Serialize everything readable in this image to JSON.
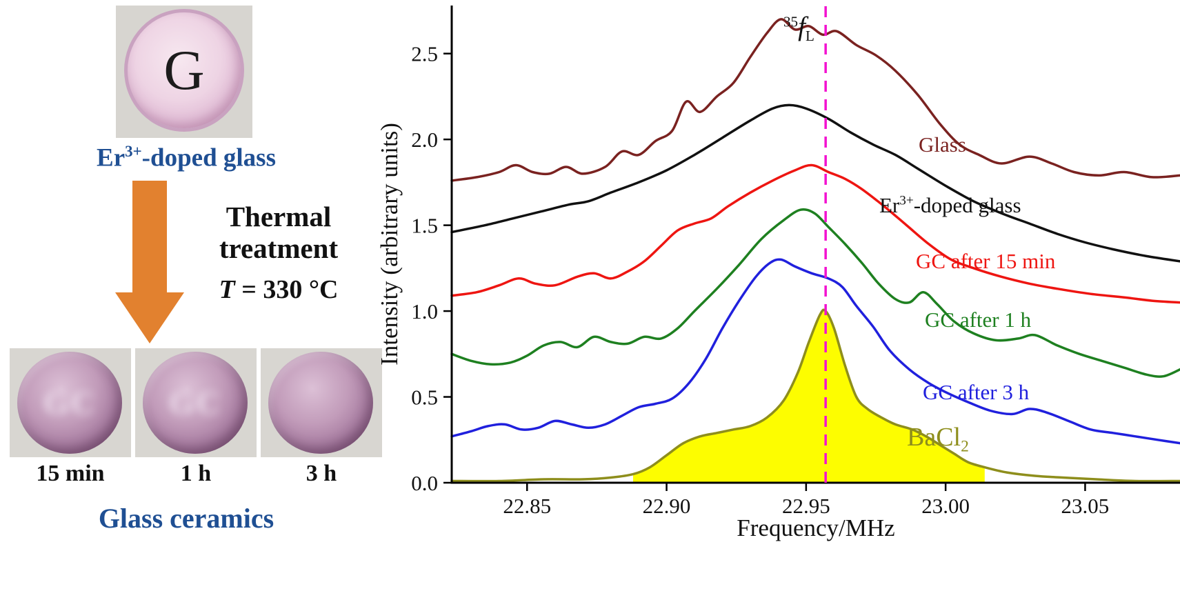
{
  "left_panel": {
    "glass_letter": "G",
    "glass_label": {
      "pre": "Er",
      "sup": "3+",
      "post": "-doped glass"
    },
    "thermal": {
      "line1": "Thermal",
      "line2": "treatment",
      "t_italic": "T",
      "t_rest": " = 330 °C"
    },
    "gc_overlay": "GC",
    "time_labels": [
      "15 min",
      "1 h",
      "3 h"
    ],
    "bottom_label": "Glass ceramics",
    "colors": {
      "label_blue": "#1f4f93",
      "arrow_orange": "#e2812f"
    }
  },
  "chart_data": {
    "type": "line",
    "xlabel": "Frequency/MHz",
    "ylabel": "Intensity (arbitrary units)",
    "xlim": [
      22.823,
      23.084
    ],
    "ylim": [
      0,
      2.78
    ],
    "x_ticks": [
      22.85,
      22.9,
      22.95,
      23.0,
      23.05
    ],
    "x_tick_labels": [
      "22.85",
      "22.90",
      "22.95",
      "23.00",
      "23.05"
    ],
    "y_ticks": [
      0.0,
      0.5,
      1.0,
      1.5,
      2.0,
      2.5
    ],
    "y_tick_labels": [
      "0.0",
      "0.5",
      "1.0",
      "1.5",
      "2.0",
      "2.5"
    ],
    "reference_line": {
      "x": 22.957,
      "color": "#f312d0",
      "style": "dashed",
      "label": {
        "sup": "35",
        "italic": "f",
        "sub": "L"
      }
    },
    "legend_labels": {
      "glass": "Glass",
      "er": {
        "pre": "Er",
        "sup": "3+",
        "post": "-doped glass"
      },
      "gc15": "GC after 15 min",
      "gc1h": "GC after 1 h",
      "gc3h": "GC after 3 h",
      "bacl2": {
        "pre": "BaCl",
        "sub": "2"
      }
    },
    "series": [
      {
        "name": "Glass",
        "color": "#7a2220",
        "points": [
          [
            22.823,
            1.76
          ],
          [
            22.832,
            1.78
          ],
          [
            22.84,
            1.81
          ],
          [
            22.846,
            1.85
          ],
          [
            22.852,
            1.81
          ],
          [
            22.858,
            1.8
          ],
          [
            22.864,
            1.84
          ],
          [
            22.87,
            1.8
          ],
          [
            22.878,
            1.84
          ],
          [
            22.884,
            1.93
          ],
          [
            22.89,
            1.91
          ],
          [
            22.896,
            1.99
          ],
          [
            22.902,
            2.05
          ],
          [
            22.907,
            2.22
          ],
          [
            22.912,
            2.16
          ],
          [
            22.918,
            2.25
          ],
          [
            22.924,
            2.33
          ],
          [
            22.93,
            2.48
          ],
          [
            22.936,
            2.62
          ],
          [
            22.941,
            2.7
          ],
          [
            22.946,
            2.64
          ],
          [
            22.951,
            2.66
          ],
          [
            22.956,
            2.61
          ],
          [
            22.961,
            2.63
          ],
          [
            22.968,
            2.55
          ],
          [
            22.975,
            2.49
          ],
          [
            22.982,
            2.4
          ],
          [
            22.99,
            2.26
          ],
          [
            22.998,
            2.09
          ],
          [
            23.005,
            1.97
          ],
          [
            23.012,
            1.91
          ],
          [
            23.02,
            1.86
          ],
          [
            23.03,
            1.9
          ],
          [
            23.038,
            1.86
          ],
          [
            23.046,
            1.81
          ],
          [
            23.055,
            1.79
          ],
          [
            23.064,
            1.81
          ],
          [
            23.074,
            1.78
          ],
          [
            23.084,
            1.79
          ]
        ]
      },
      {
        "name": "Er3+-doped glass",
        "color": "#111111",
        "points": [
          [
            22.823,
            1.46
          ],
          [
            22.835,
            1.5
          ],
          [
            22.845,
            1.54
          ],
          [
            22.855,
            1.58
          ],
          [
            22.865,
            1.62
          ],
          [
            22.872,
            1.64
          ],
          [
            22.88,
            1.69
          ],
          [
            22.89,
            1.75
          ],
          [
            22.9,
            1.82
          ],
          [
            22.91,
            1.91
          ],
          [
            22.92,
            2.01
          ],
          [
            22.93,
            2.11
          ],
          [
            22.938,
            2.18
          ],
          [
            22.944,
            2.2
          ],
          [
            22.95,
            2.18
          ],
          [
            22.958,
            2.12
          ],
          [
            22.966,
            2.04
          ],
          [
            22.974,
            1.97
          ],
          [
            22.982,
            1.91
          ],
          [
            22.99,
            1.83
          ],
          [
            23.0,
            1.73
          ],
          [
            23.01,
            1.64
          ],
          [
            23.02,
            1.57
          ],
          [
            23.03,
            1.51
          ],
          [
            23.04,
            1.45
          ],
          [
            23.05,
            1.4
          ],
          [
            23.06,
            1.36
          ],
          [
            23.072,
            1.32
          ],
          [
            23.084,
            1.29
          ]
        ]
      },
      {
        "name": "GC after 15 min",
        "color": "#ee1511",
        "points": [
          [
            22.823,
            1.09
          ],
          [
            22.832,
            1.11
          ],
          [
            22.84,
            1.15
          ],
          [
            22.847,
            1.19
          ],
          [
            22.853,
            1.16
          ],
          [
            22.86,
            1.15
          ],
          [
            22.868,
            1.2
          ],
          [
            22.874,
            1.22
          ],
          [
            22.88,
            1.19
          ],
          [
            22.886,
            1.23
          ],
          [
            22.892,
            1.29
          ],
          [
            22.898,
            1.38
          ],
          [
            22.904,
            1.47
          ],
          [
            22.91,
            1.51
          ],
          [
            22.916,
            1.54
          ],
          [
            22.922,
            1.61
          ],
          [
            22.93,
            1.69
          ],
          [
            22.938,
            1.76
          ],
          [
            22.946,
            1.82
          ],
          [
            22.952,
            1.85
          ],
          [
            22.958,
            1.81
          ],
          [
            22.964,
            1.77
          ],
          [
            22.97,
            1.71
          ],
          [
            22.978,
            1.61
          ],
          [
            22.986,
            1.5
          ],
          [
            22.994,
            1.39
          ],
          [
            23.002,
            1.3
          ],
          [
            23.01,
            1.25
          ],
          [
            23.02,
            1.2
          ],
          [
            23.03,
            1.16
          ],
          [
            23.04,
            1.13
          ],
          [
            23.052,
            1.1
          ],
          [
            23.064,
            1.08
          ],
          [
            23.074,
            1.06
          ],
          [
            23.084,
            1.05
          ]
        ]
      },
      {
        "name": "GC after 1 h",
        "color": "#1e8020",
        "points": [
          [
            22.823,
            0.75
          ],
          [
            22.83,
            0.71
          ],
          [
            22.837,
            0.69
          ],
          [
            22.844,
            0.7
          ],
          [
            22.85,
            0.74
          ],
          [
            22.856,
            0.8
          ],
          [
            22.862,
            0.82
          ],
          [
            22.868,
            0.79
          ],
          [
            22.874,
            0.85
          ],
          [
            22.88,
            0.82
          ],
          [
            22.886,
            0.81
          ],
          [
            22.892,
            0.85
          ],
          [
            22.898,
            0.84
          ],
          [
            22.904,
            0.9
          ],
          [
            22.91,
            1.0
          ],
          [
            22.918,
            1.13
          ],
          [
            22.926,
            1.27
          ],
          [
            22.934,
            1.42
          ],
          [
            22.942,
            1.53
          ],
          [
            22.948,
            1.59
          ],
          [
            22.953,
            1.57
          ],
          [
            22.958,
            1.49
          ],
          [
            22.964,
            1.39
          ],
          [
            22.97,
            1.28
          ],
          [
            22.976,
            1.16
          ],
          [
            22.982,
            1.07
          ],
          [
            22.987,
            1.05
          ],
          [
            22.992,
            1.11
          ],
          [
            22.997,
            1.04
          ],
          [
            23.003,
            0.94
          ],
          [
            23.01,
            0.87
          ],
          [
            23.018,
            0.83
          ],
          [
            23.026,
            0.84
          ],
          [
            23.032,
            0.86
          ],
          [
            23.04,
            0.8
          ],
          [
            23.048,
            0.75
          ],
          [
            23.056,
            0.71
          ],
          [
            23.064,
            0.67
          ],
          [
            23.072,
            0.63
          ],
          [
            23.078,
            0.62
          ],
          [
            23.084,
            0.66
          ]
        ]
      },
      {
        "name": "GC after 3 h",
        "color": "#2020dd",
        "points": [
          [
            22.823,
            0.27
          ],
          [
            22.83,
            0.3
          ],
          [
            22.836,
            0.33
          ],
          [
            22.842,
            0.34
          ],
          [
            22.848,
            0.31
          ],
          [
            22.854,
            0.32
          ],
          [
            22.86,
            0.36
          ],
          [
            22.866,
            0.34
          ],
          [
            22.872,
            0.32
          ],
          [
            22.878,
            0.34
          ],
          [
            22.884,
            0.39
          ],
          [
            22.89,
            0.44
          ],
          [
            22.896,
            0.46
          ],
          [
            22.902,
            0.49
          ],
          [
            22.908,
            0.58
          ],
          [
            22.914,
            0.72
          ],
          [
            22.92,
            0.9
          ],
          [
            22.926,
            1.06
          ],
          [
            22.932,
            1.2
          ],
          [
            22.937,
            1.28
          ],
          [
            22.941,
            1.3
          ],
          [
            22.946,
            1.26
          ],
          [
            22.952,
            1.22
          ],
          [
            22.958,
            1.19
          ],
          [
            22.963,
            1.14
          ],
          [
            22.968,
            1.03
          ],
          [
            22.974,
            0.91
          ],
          [
            22.98,
            0.77
          ],
          [
            22.987,
            0.66
          ],
          [
            22.994,
            0.58
          ],
          [
            23.001,
            0.52
          ],
          [
            23.008,
            0.47
          ],
          [
            23.016,
            0.42
          ],
          [
            23.024,
            0.4
          ],
          [
            23.03,
            0.43
          ],
          [
            23.036,
            0.41
          ],
          [
            23.044,
            0.36
          ],
          [
            23.052,
            0.31
          ],
          [
            23.06,
            0.29
          ],
          [
            23.068,
            0.27
          ],
          [
            23.076,
            0.25
          ],
          [
            23.084,
            0.23
          ]
        ]
      },
      {
        "name": "BaCl2",
        "color": "#8e8e1c",
        "fill": "#fdfd00",
        "fill_range": [
          22.884,
          23.016
        ],
        "points": [
          [
            22.823,
            0.01
          ],
          [
            22.84,
            0.01
          ],
          [
            22.856,
            0.02
          ],
          [
            22.87,
            0.02
          ],
          [
            22.88,
            0.03
          ],
          [
            22.888,
            0.05
          ],
          [
            22.894,
            0.09
          ],
          [
            22.9,
            0.16
          ],
          [
            22.906,
            0.23
          ],
          [
            22.912,
            0.27
          ],
          [
            22.918,
            0.29
          ],
          [
            22.924,
            0.31
          ],
          [
            22.93,
            0.33
          ],
          [
            22.936,
            0.38
          ],
          [
            22.942,
            0.48
          ],
          [
            22.947,
            0.64
          ],
          [
            22.951,
            0.82
          ],
          [
            22.955,
            0.98
          ],
          [
            22.957,
            1.0
          ],
          [
            22.96,
            0.9
          ],
          [
            22.964,
            0.68
          ],
          [
            22.968,
            0.5
          ],
          [
            22.972,
            0.43
          ],
          [
            22.977,
            0.38
          ],
          [
            22.982,
            0.34
          ],
          [
            22.988,
            0.31
          ],
          [
            22.993,
            0.27
          ],
          [
            22.998,
            0.22
          ],
          [
            23.003,
            0.17
          ],
          [
            23.008,
            0.12
          ],
          [
            23.014,
            0.09
          ],
          [
            23.022,
            0.06
          ],
          [
            23.032,
            0.04
          ],
          [
            23.042,
            0.03
          ],
          [
            23.054,
            0.02
          ],
          [
            23.068,
            0.01
          ],
          [
            23.084,
            0.01
          ]
        ]
      }
    ]
  }
}
